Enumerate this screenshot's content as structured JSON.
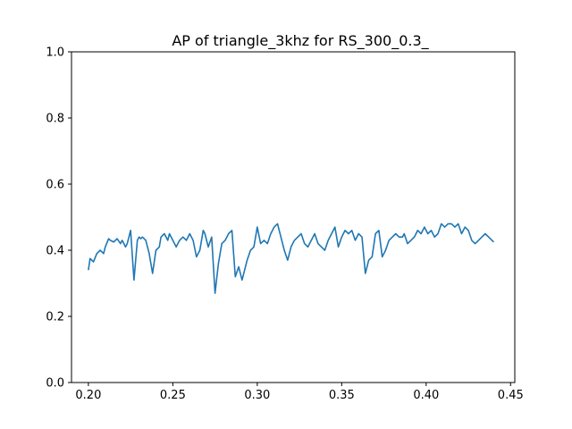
{
  "chart_data": {
    "type": "line",
    "title": "AP of triangle_3khz for RS_300_0.3_",
    "xlabel": "",
    "ylabel": "",
    "xlim": [
      0.19,
      0.4525
    ],
    "ylim": [
      0.0,
      1.0
    ],
    "xticks": [
      0.2,
      0.25,
      0.3,
      0.35,
      0.4,
      0.45
    ],
    "xtick_labels": [
      "0.20",
      "0.25",
      "0.30",
      "0.35",
      "0.40",
      "0.45"
    ],
    "yticks": [
      0.0,
      0.2,
      0.4,
      0.6,
      0.8,
      1.0
    ],
    "ytick_labels": [
      "0.0",
      "0.2",
      "0.4",
      "0.6",
      "0.8",
      "1.0"
    ],
    "grid": false,
    "line_color": "#1f77b4",
    "series": [
      {
        "x": [
          0.2,
          0.201,
          0.203,
          0.205,
          0.207,
          0.209,
          0.21,
          0.212,
          0.213,
          0.215,
          0.217,
          0.219,
          0.22,
          0.222,
          0.223,
          0.225,
          0.227,
          0.229,
          0.23,
          0.231,
          0.232,
          0.234,
          0.236,
          0.238,
          0.24,
          0.242,
          0.243,
          0.245,
          0.247,
          0.248,
          0.25,
          0.252,
          0.254,
          0.256,
          0.258,
          0.26,
          0.262,
          0.264,
          0.266,
          0.268,
          0.269,
          0.271,
          0.273,
          0.275,
          0.277,
          0.279,
          0.281,
          0.283,
          0.285,
          0.287,
          0.289,
          0.291,
          0.292,
          0.294,
          0.296,
          0.298,
          0.3,
          0.302,
          0.304,
          0.306,
          0.308,
          0.31,
          0.312,
          0.314,
          0.316,
          0.318,
          0.32,
          0.322,
          0.324,
          0.326,
          0.328,
          0.33,
          0.332,
          0.334,
          0.336,
          0.338,
          0.34,
          0.342,
          0.344,
          0.346,
          0.348,
          0.35,
          0.352,
          0.354,
          0.356,
          0.358,
          0.36,
          0.362,
          0.364,
          0.366,
          0.368,
          0.37,
          0.372,
          0.374,
          0.376,
          0.378,
          0.38,
          0.382,
          0.384,
          0.386,
          0.387,
          0.389,
          0.391,
          0.393,
          0.395,
          0.397,
          0.399,
          0.401,
          0.403,
          0.405,
          0.407,
          0.409,
          0.411,
          0.413,
          0.415,
          0.417,
          0.419,
          0.421,
          0.423,
          0.425,
          0.427,
          0.429,
          0.431,
          0.433,
          0.435,
          0.437,
          0.439,
          0.44
        ],
        "values": [
          0.34,
          0.375,
          0.365,
          0.39,
          0.4,
          0.39,
          0.41,
          0.435,
          0.43,
          0.425,
          0.435,
          0.42,
          0.43,
          0.41,
          0.42,
          0.46,
          0.31,
          0.43,
          0.44,
          0.435,
          0.44,
          0.43,
          0.39,
          0.33,
          0.4,
          0.41,
          0.44,
          0.45,
          0.43,
          0.45,
          0.43,
          0.41,
          0.43,
          0.44,
          0.43,
          0.45,
          0.43,
          0.38,
          0.4,
          0.46,
          0.45,
          0.41,
          0.44,
          0.27,
          0.36,
          0.42,
          0.43,
          0.45,
          0.46,
          0.32,
          0.35,
          0.31,
          0.33,
          0.37,
          0.4,
          0.41,
          0.47,
          0.42,
          0.43,
          0.42,
          0.45,
          0.47,
          0.48,
          0.44,
          0.4,
          0.37,
          0.41,
          0.43,
          0.44,
          0.45,
          0.42,
          0.41,
          0.43,
          0.45,
          0.42,
          0.41,
          0.4,
          0.43,
          0.45,
          0.47,
          0.41,
          0.44,
          0.46,
          0.45,
          0.46,
          0.43,
          0.45,
          0.44,
          0.33,
          0.37,
          0.38,
          0.45,
          0.46,
          0.38,
          0.4,
          0.43,
          0.44,
          0.45,
          0.44,
          0.44,
          0.45,
          0.42,
          0.43,
          0.44,
          0.46,
          0.45,
          0.47,
          0.45,
          0.46,
          0.44,
          0.45,
          0.48,
          0.47,
          0.48,
          0.48,
          0.47,
          0.48,
          0.45,
          0.47,
          0.46,
          0.43,
          0.42,
          0.43,
          0.44,
          0.45,
          0.44,
          0.43,
          0.425
        ]
      }
    ]
  }
}
